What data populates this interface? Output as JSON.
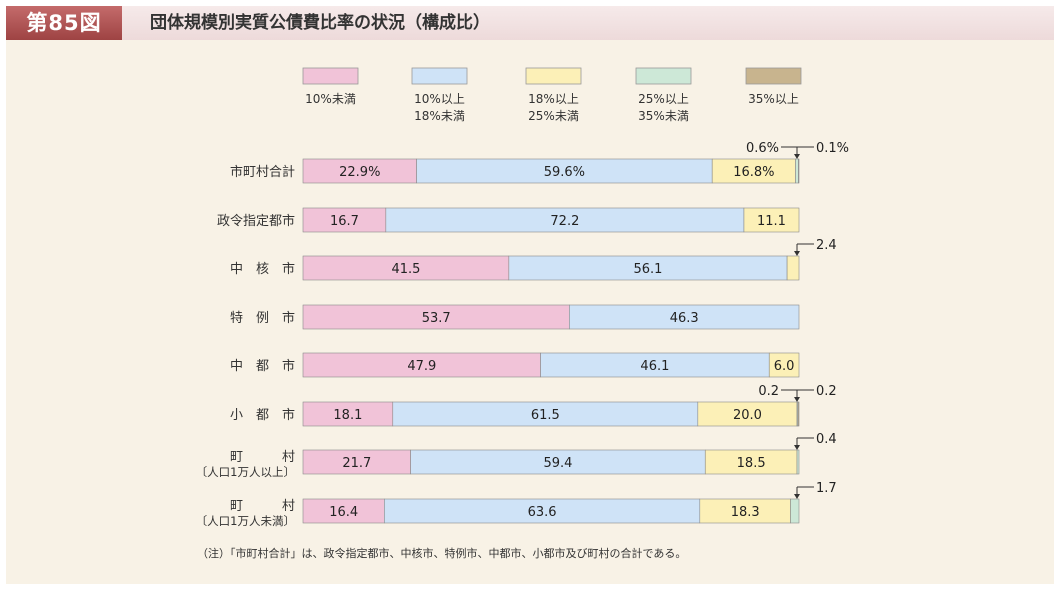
{
  "header": {
    "badge": "第85図",
    "title": "団体規模別実質公債費比率の状況（構成比）"
  },
  "footnote": "（注）「市町村合計」は、政令指定都市、中核市、特例市、中都市、小都市及び町村の合計である。",
  "colors": [
    "#f1c3d8",
    "#cfe3f7",
    "#fcf0b7",
    "#cde8d7",
    "#c8b48e"
  ],
  "chart_data": {
    "type": "bar",
    "orientation": "horizontal",
    "stacked": true,
    "unit": "%",
    "xlim": [
      0,
      100
    ],
    "legend_placement": "top",
    "legend": [
      [
        "10%未満"
      ],
      [
        "10%以上",
        "18%未満"
      ],
      [
        "18%以上",
        "25%未満"
      ],
      [
        "25%以上",
        "35%未満"
      ],
      [
        "35%以上"
      ]
    ],
    "categories": [
      [
        "市町村合計"
      ],
      [
        "政令指定都市"
      ],
      [
        "中　核　市"
      ],
      [
        "特　例　市"
      ],
      [
        "中　都　市"
      ],
      [
        "小　都　市"
      ],
      [
        "町　　　村",
        "〔人口1万人以上〕"
      ],
      [
        "町　　　村",
        "〔人口1万人未満〕"
      ]
    ],
    "values": [
      [
        22.9,
        59.6,
        16.8,
        0.6,
        0.1
      ],
      [
        16.7,
        72.2,
        11.1,
        0,
        0
      ],
      [
        41.5,
        56.1,
        2.4,
        0,
        0
      ],
      [
        53.7,
        46.3,
        0,
        0,
        0
      ],
      [
        47.9,
        46.1,
        6.0,
        0,
        0
      ],
      [
        18.1,
        61.5,
        20.0,
        0.2,
        0.2
      ],
      [
        21.7,
        59.4,
        18.5,
        0.4,
        0
      ],
      [
        16.4,
        63.6,
        18.3,
        1.7,
        0
      ]
    ],
    "labels": [
      [
        "22.9%",
        "59.6%",
        "16.8%",
        "",
        ""
      ],
      [
        "16.7",
        "72.2",
        "11.1",
        "",
        ""
      ],
      [
        "41.5",
        "56.1",
        "",
        "",
        ""
      ],
      [
        "53.7",
        "46.3",
        "",
        "",
        ""
      ],
      [
        "47.9",
        "46.1",
        "6.0",
        "",
        ""
      ],
      [
        "18.1",
        "61.5",
        "20.0",
        "",
        ""
      ],
      [
        "21.7",
        "59.4",
        "18.5",
        "",
        ""
      ],
      [
        "16.4",
        "63.6",
        "18.3",
        "",
        ""
      ]
    ],
    "callouts": [
      {
        "row": 0,
        "left": "0.6%",
        "right": "0.1%"
      },
      {
        "row": 2,
        "right": "2.4"
      },
      {
        "row": 5,
        "left": "0.2",
        "right": "0.2"
      },
      {
        "row": 6,
        "right": "0.4"
      },
      {
        "row": 7,
        "right": "1.7"
      }
    ]
  }
}
